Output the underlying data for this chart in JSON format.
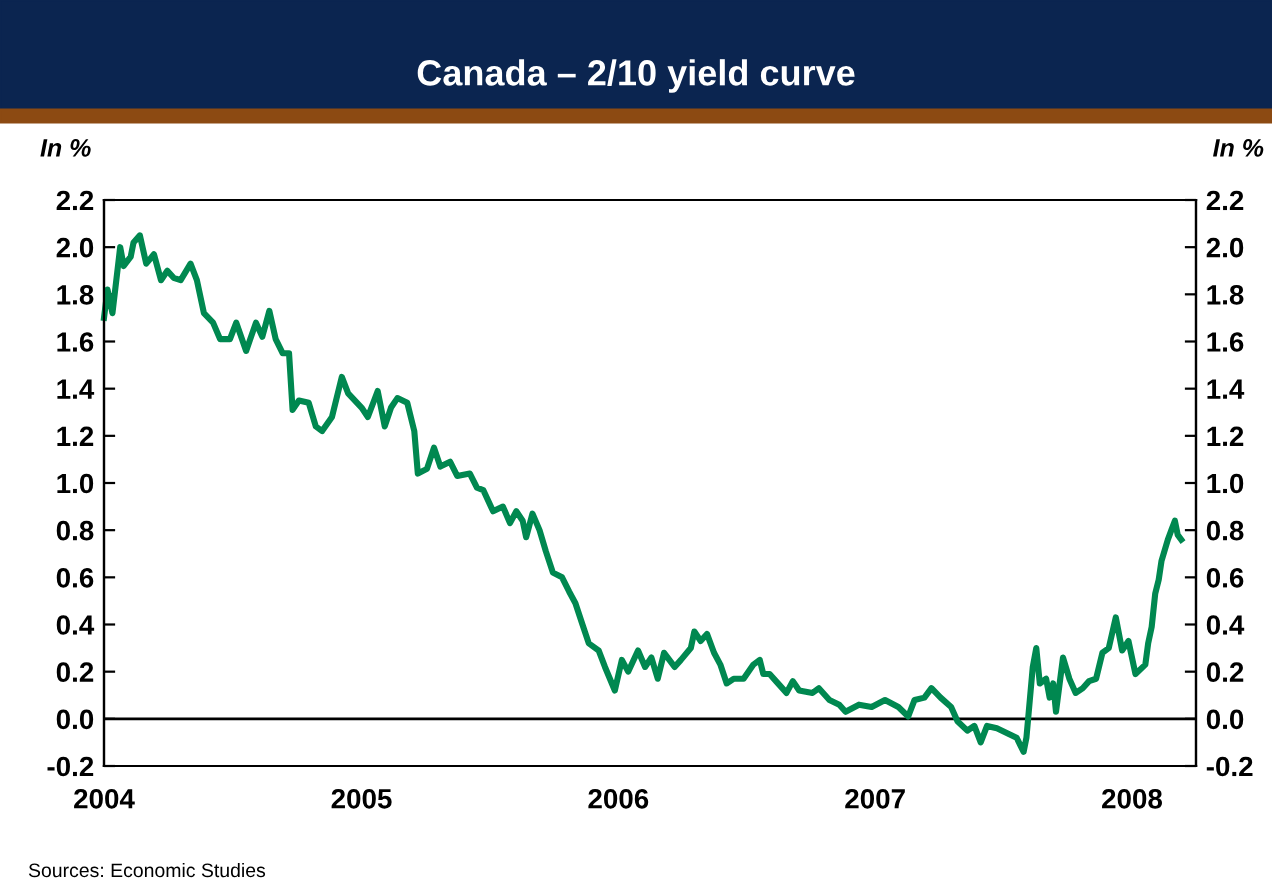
{
  "chart_data": {
    "type": "line",
    "title": "Canada – 2/10 yield curve",
    "ylabel": "In %",
    "y2label": "In %",
    "series": [
      {
        "color": "#008850",
        "x": [
          "2004-01-01",
          "2004-01-06",
          "2004-01-13",
          "2004-01-24",
          "2004-01-29",
          "2004-02-08",
          "2004-02-12",
          "2004-02-21",
          "2004-03-01",
          "2004-03-12",
          "2004-03-22",
          "2004-03-31",
          "2004-04-09",
          "2004-04-19",
          "2004-05-03",
          "2004-05-12",
          "2004-05-22",
          "2004-06-04",
          "2004-06-14",
          "2004-06-28",
          "2004-07-07",
          "2004-07-21",
          "2004-08-04",
          "2004-08-13",
          "2004-08-23",
          "2004-09-01",
          "2004-09-11",
          "2004-09-20",
          "2004-09-25",
          "2004-10-04",
          "2004-10-18",
          "2004-10-28",
          "2004-11-06",
          "2004-11-20",
          "2004-12-04",
          "2004-12-13",
          "2005-01-01",
          "2005-01-10",
          "2005-01-24",
          "2005-02-03",
          "2005-02-12",
          "2005-02-21",
          "2005-03-07",
          "2005-03-17",
          "2005-03-22",
          "2005-04-04",
          "2005-04-14",
          "2005-04-23",
          "2005-05-07",
          "2005-05-17",
          "2005-06-04",
          "2005-06-14",
          "2005-06-23",
          "2005-07-07",
          "2005-07-21",
          "2005-07-31",
          "2005-08-09",
          "2005-08-18",
          "2005-08-23",
          "2005-09-01",
          "2005-09-11",
          "2005-09-20",
          "2005-09-30",
          "2005-10-13",
          "2005-10-23",
          "2005-11-01",
          "2005-11-11",
          "2005-11-20",
          "2005-12-04",
          "2005-12-13",
          "2005-12-27",
          "2006-01-06",
          "2006-01-15",
          "2006-01-29",
          "2006-02-08",
          "2006-02-17",
          "2006-02-26",
          "2006-03-07",
          "2006-03-22",
          "2006-03-31",
          "2006-04-14",
          "2006-04-19",
          "2006-04-28",
          "2006-05-07",
          "2006-05-17",
          "2006-05-26",
          "2006-06-04",
          "2006-06-14",
          "2006-06-28",
          "2006-07-12",
          "2006-07-21",
          "2006-07-26",
          "2006-08-04",
          "2006-08-13",
          "2006-08-28",
          "2006-09-06",
          "2006-09-15",
          "2006-10-04",
          "2006-10-13",
          "2006-10-28",
          "2006-11-11",
          "2006-11-20",
          "2006-12-09",
          "2006-12-27",
          "2007-01-15",
          "2007-02-03",
          "2007-02-17",
          "2007-02-26",
          "2007-03-12",
          "2007-03-22",
          "2007-04-04",
          "2007-04-19",
          "2007-04-28",
          "2007-05-12",
          "2007-05-22",
          "2007-05-31",
          "2007-06-09",
          "2007-06-23",
          "2007-07-07",
          "2007-07-21",
          "2007-07-31",
          "2007-08-04",
          "2007-08-13",
          "2007-08-18",
          "2007-08-23",
          "2007-09-01",
          "2007-09-06",
          "2007-09-11",
          "2007-09-15",
          "2007-09-25",
          "2007-10-04",
          "2007-10-13",
          "2007-10-23",
          "2007-11-01",
          "2007-11-11",
          "2007-11-20",
          "2007-11-29",
          "2007-12-09",
          "2007-12-18",
          "2007-12-27",
          "2008-01-06",
          "2008-01-20",
          "2008-01-24",
          "2008-01-29",
          "2008-02-03",
          "2008-02-08",
          "2008-02-12",
          "2008-02-21",
          "2008-02-26",
          "2008-03-02",
          "2008-03-06",
          "2008-03-11"
        ],
        "values": [
          1.7,
          1.82,
          1.72,
          2.0,
          1.92,
          1.96,
          2.02,
          2.05,
          1.93,
          1.97,
          1.86,
          1.9,
          1.87,
          1.86,
          1.93,
          1.86,
          1.72,
          1.68,
          1.61,
          1.61,
          1.68,
          1.56,
          1.68,
          1.62,
          1.73,
          1.61,
          1.55,
          1.55,
          1.31,
          1.35,
          1.34,
          1.24,
          1.22,
          1.28,
          1.45,
          1.38,
          1.32,
          1.28,
          1.39,
          1.24,
          1.32,
          1.36,
          1.34,
          1.22,
          1.04,
          1.06,
          1.15,
          1.07,
          1.09,
          1.03,
          1.04,
          0.98,
          0.97,
          0.88,
          0.9,
          0.83,
          0.88,
          0.84,
          0.77,
          0.87,
          0.8,
          0.71,
          0.62,
          0.6,
          0.54,
          0.49,
          0.4,
          0.32,
          0.29,
          0.22,
          0.12,
          0.25,
          0.2,
          0.29,
          0.22,
          0.26,
          0.17,
          0.28,
          0.22,
          0.25,
          0.3,
          0.37,
          0.33,
          0.36,
          0.28,
          0.23,
          0.15,
          0.17,
          0.17,
          0.23,
          0.25,
          0.19,
          0.19,
          0.16,
          0.11,
          0.16,
          0.12,
          0.11,
          0.13,
          0.08,
          0.06,
          0.03,
          0.06,
          0.05,
          0.08,
          0.05,
          0.01,
          0.08,
          0.09,
          0.13,
          0.09,
          0.05,
          -0.01,
          -0.05,
          -0.03,
          -0.1,
          -0.03,
          -0.04,
          -0.06,
          -0.08,
          -0.14,
          -0.08,
          0.22,
          0.3,
          0.15,
          0.17,
          0.09,
          0.15,
          0.03,
          0.26,
          0.17,
          0.11,
          0.13,
          0.16,
          0.17,
          0.28,
          0.3,
          0.43,
          0.29,
          0.33,
          0.19,
          0.23,
          0.32,
          0.39,
          0.53,
          0.59,
          0.67,
          0.76,
          0.8,
          0.84,
          0.78,
          0.76
        ]
      }
    ],
    "xlim": [
      "2004-01-01",
      "2008-04-01"
    ],
    "xticks": [
      {
        "value": "2004",
        "label": "2004"
      },
      {
        "value": "2005",
        "label": "2005"
      },
      {
        "value": "2006",
        "label": "2006"
      },
      {
        "value": "2007",
        "label": "2007"
      },
      {
        "value": "2008",
        "label": "2008"
      }
    ],
    "ylim": [
      -0.2,
      2.2
    ],
    "yticks": [
      {
        "value": -0.2,
        "label": "-0.2"
      },
      {
        "value": 0,
        "label": "0.0"
      },
      {
        "value": 0.2,
        "label": "0.2"
      },
      {
        "value": 0.4,
        "label": "0.4"
      },
      {
        "value": 0.6,
        "label": "0.6"
      },
      {
        "value": 0.8,
        "label": "0.8"
      },
      {
        "value": 1.0,
        "label": "1.0"
      },
      {
        "value": 1.2,
        "label": "1.2"
      },
      {
        "value": 1.4,
        "label": "1.4"
      },
      {
        "value": 1.6,
        "label": "1.6"
      },
      {
        "value": 1.8,
        "label": "1.8"
      },
      {
        "value": 2.0,
        "label": "2.0"
      },
      {
        "value": 2.2,
        "label": "2.2"
      }
    ],
    "y2lim": [
      -0.2,
      2.2
    ],
    "y2ticks": [
      {
        "value": -0.2,
        "label": "-0.2"
      },
      {
        "value": 0,
        "label": "0.0"
      },
      {
        "value": 0.2,
        "label": "0.2"
      },
      {
        "value": 0.4,
        "label": "0.4"
      },
      {
        "value": 0.6,
        "label": "0.6"
      },
      {
        "value": 0.8,
        "label": "0.8"
      },
      {
        "value": 1.0,
        "label": "1.0"
      },
      {
        "value": 1.2,
        "label": "1.2"
      },
      {
        "value": 1.4,
        "label": "1.4"
      },
      {
        "value": 1.6,
        "label": "1.6"
      },
      {
        "value": 1.8,
        "label": "1.8"
      },
      {
        "value": 2.0,
        "label": "2.0"
      },
      {
        "value": 2.2,
        "label": "2.2"
      }
    ],
    "ref_lines": [
      {
        "axis": "y",
        "value": 0,
        "color": "#000000"
      }
    ],
    "grid": false,
    "legend": false,
    "annotations": [
      "Sources: Economic Studies"
    ]
  }
}
